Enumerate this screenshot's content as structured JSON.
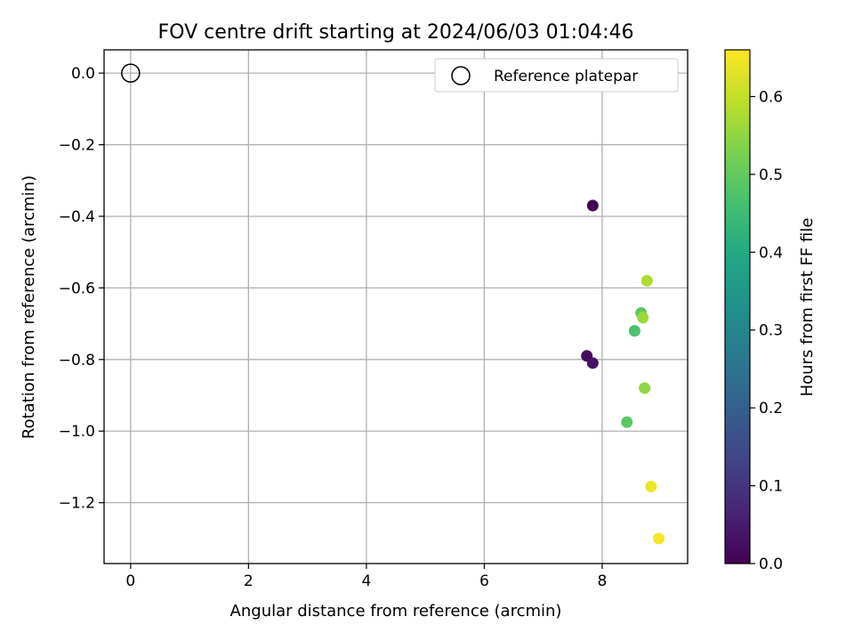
{
  "chart_data": {
    "type": "scatter",
    "title": "FOV centre drift starting at 2024/06/03 01:04:46",
    "xlabel": "Angular distance from reference (arcmin)",
    "ylabel": "Rotation from reference (arcmin)",
    "xlim": [
      -0.45,
      9.45
    ],
    "ylim": [
      -1.37,
      0.065
    ],
    "xticks": [
      0,
      2,
      4,
      6,
      8
    ],
    "yticks": [
      0.0,
      -0.2,
      -0.4,
      -0.6,
      -0.8,
      -1.0,
      -1.2
    ],
    "xtick_labels": [
      "0",
      "2",
      "4",
      "6",
      "8"
    ],
    "ytick_labels": [
      "0.0",
      "−0.2",
      "−0.4",
      "−0.6",
      "−0.8",
      "−1.0",
      "−1.2"
    ],
    "grid": true,
    "legend": {
      "position": "top-right",
      "entries": [
        "Reference platepar"
      ]
    },
    "reference_point": {
      "name": "Reference platepar",
      "x": 0.0,
      "y": 0.0,
      "marker": "open-circle"
    },
    "colorbar": {
      "label": "Hours from first FF file",
      "colormap": "viridis",
      "range": [
        0.0,
        0.66
      ],
      "ticks": [
        0.0,
        0.1,
        0.2,
        0.3,
        0.4,
        0.5,
        0.6
      ],
      "tick_labels": [
        "0.0",
        "0.1",
        "0.2",
        "0.3",
        "0.4",
        "0.5",
        "0.6"
      ]
    },
    "points": [
      {
        "x": 7.84,
        "y": -0.37,
        "hours": 0.0
      },
      {
        "x": 7.74,
        "y": -0.79,
        "hours": 0.02
      },
      {
        "x": 7.84,
        "y": -0.81,
        "hours": 0.03
      },
      {
        "x": 8.55,
        "y": -0.72,
        "hours": 0.47
      },
      {
        "x": 8.42,
        "y": -0.975,
        "hours": 0.49
      },
      {
        "x": 8.66,
        "y": -0.67,
        "hours": 0.5
      },
      {
        "x": 8.72,
        "y": -0.88,
        "hours": 0.55
      },
      {
        "x": 8.69,
        "y": -0.683,
        "hours": 0.56
      },
      {
        "x": 8.76,
        "y": -0.58,
        "hours": 0.58
      },
      {
        "x": 8.83,
        "y": -1.155,
        "hours": 0.64
      },
      {
        "x": 8.96,
        "y": -1.3,
        "hours": 0.65
      }
    ]
  }
}
